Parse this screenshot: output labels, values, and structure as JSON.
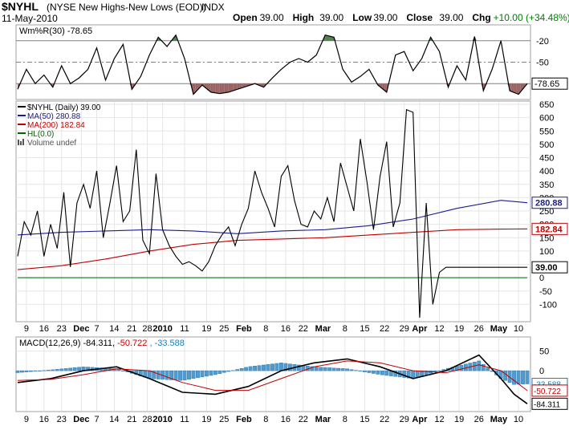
{
  "header": {
    "symbol": "$NYHL",
    "name": "(NYSE New Highs-New Lows (EOD))",
    "exchange": "INDX",
    "date": "11-May-2010",
    "quote": [
      {
        "label": "Open",
        "value": "39.00"
      },
      {
        "label": "High",
        "value": "39.00"
      },
      {
        "label": "Low",
        "value": "39.00"
      },
      {
        "label": "Close",
        "value": "39.00"
      },
      {
        "label": "Chg",
        "value": "+10.00 (+34.48%)"
      }
    ],
    "change_color": "#008000"
  },
  "chart_data": [
    {
      "type": "line",
      "panel": "williams-r",
      "legend": "Wm%R(30) -78.65",
      "ylim": [
        -100,
        0
      ],
      "yticks": [
        "-20",
        "-50"
      ],
      "reference_lines": [
        -20,
        -50,
        -80
      ],
      "last_value_label": "-78.65",
      "colors": {
        "line": "#000000",
        "overbought_fill": "#4f7f4f",
        "oversold_fill": "#9a6464"
      },
      "x_index": [
        0,
        4,
        8,
        12,
        16,
        20,
        24,
        28,
        32,
        36,
        40,
        44,
        48,
        52,
        56,
        60,
        64,
        68,
        72,
        76,
        80,
        84,
        88,
        92,
        96,
        100,
        104,
        108,
        112,
        116,
        120,
        124,
        128,
        132,
        136,
        140,
        144,
        148,
        152,
        156,
        160,
        164,
        168,
        172,
        176,
        180,
        184,
        188,
        192,
        196,
        200,
        204,
        208,
        212,
        216,
        220,
        224,
        228,
        232
      ],
      "values": [
        -88,
        -60,
        -80,
        -68,
        -85,
        -55,
        -80,
        -72,
        -60,
        -30,
        -75,
        -45,
        -25,
        -88,
        -70,
        -40,
        -15,
        -28,
        -12,
        -45,
        -95,
        -82,
        -92,
        -94,
        -92,
        -88,
        -84,
        -80,
        -85,
        -72,
        -60,
        -50,
        -45,
        -50,
        -40,
        -12,
        -15,
        -60,
        -78,
        -70,
        -60,
        -82,
        -92,
        -40,
        -35,
        -62,
        -45,
        -15,
        -35,
        -85,
        -55,
        -75,
        -14,
        -90,
        -60,
        -20,
        -90,
        -95,
        -80
      ]
    },
    {
      "type": "line",
      "panel": "price",
      "legend": [
        {
          "label": "$NYHL (Daily) 39.00",
          "color": "#000000"
        },
        {
          "label": "MA(50) 280.88",
          "color": "#1c1c8c"
        },
        {
          "label": "MA(200) 182.84",
          "color": "#c00000"
        },
        {
          "label": "HL(0.0)",
          "color": "#006400"
        },
        {
          "label": "Volume undef",
          "color": "#555555"
        }
      ],
      "ylim": [
        -150,
        650
      ],
      "yticks": [
        650,
        600,
        550,
        500,
        450,
        400,
        350,
        300,
        250,
        200,
        150,
        100,
        50,
        0,
        -50,
        -100
      ],
      "last_value_labels": [
        {
          "value": 280.88,
          "text": "280.88",
          "color": "#1c1c8c"
        },
        {
          "value": 182.84,
          "text": "182.84",
          "color": "#c00000"
        },
        {
          "value": 39.0,
          "text": "39.00",
          "color": "#000000"
        }
      ],
      "series": [
        {
          "name": "$NYHL",
          "x_index": [
            0,
            3,
            6,
            9,
            12,
            15,
            18,
            21,
            24,
            27,
            30,
            33,
            36,
            39,
            42,
            45,
            48,
            51,
            54,
            57,
            60,
            63,
            66,
            69,
            72,
            75,
            78,
            81,
            84,
            87,
            90,
            93,
            96,
            99,
            102,
            105,
            108,
            111,
            114,
            117,
            120,
            123,
            126,
            129,
            132,
            135,
            138,
            141,
            144,
            147,
            150,
            153,
            156,
            159,
            162,
            165,
            168,
            171,
            174,
            177,
            180,
            183,
            186,
            189,
            192,
            195,
            198,
            201,
            204,
            207,
            210,
            213,
            216,
            219,
            222,
            225,
            228,
            231,
            232
          ],
          "values": [
            80,
            210,
            160,
            250,
            80,
            200,
            110,
            320,
            40,
            280,
            350,
            260,
            400,
            150,
            280,
            420,
            210,
            250,
            480,
            140,
            90,
            390,
            180,
            120,
            80,
            50,
            60,
            45,
            25,
            60,
            120,
            160,
            190,
            120,
            200,
            260,
            400,
            320,
            260,
            190,
            380,
            420,
            290,
            200,
            190,
            250,
            220,
            300,
            210,
            430,
            340,
            250,
            520,
            360,
            180,
            380,
            510,
            190,
            280,
            630,
            620,
            -150,
            280,
            -100,
            20,
            39,
            39,
            39,
            39,
            39,
            39,
            39,
            39,
            39,
            39,
            39,
            39,
            39,
            39
          ]
        },
        {
          "name": "MA(50)",
          "x_index": [
            0,
            20,
            40,
            60,
            80,
            100,
            120,
            140,
            160,
            180,
            200,
            220,
            232
          ],
          "values": [
            160,
            170,
            175,
            180,
            175,
            165,
            175,
            180,
            195,
            220,
            260,
            290,
            281
          ]
        },
        {
          "name": "MA(200)",
          "x_index": [
            0,
            20,
            40,
            60,
            80,
            100,
            120,
            140,
            160,
            180,
            200,
            220,
            232
          ],
          "values": [
            30,
            45,
            70,
            100,
            125,
            140,
            145,
            150,
            160,
            170,
            180,
            182,
            183
          ]
        },
        {
          "name": "HL(0.0)",
          "x_index": [
            0,
            232
          ],
          "values": [
            0,
            0
          ]
        }
      ]
    },
    {
      "type": "line",
      "panel": "macd",
      "legend": [
        {
          "label": "MACD(12,26,9)",
          "color": "#000000"
        },
        {
          "label": "-84.311,",
          "color": "#000000"
        },
        {
          "label": "-50.722",
          "color": "#c00000"
        },
        {
          "label": ", -33.588",
          "color": "#1c7eb8"
        }
      ],
      "ylim": [
        -100,
        80
      ],
      "yticks": [
        "50",
        "0"
      ],
      "last_value_labels": [
        {
          "value": -33.588,
          "text": "-33.588",
          "color": "#1c7eb8"
        },
        {
          "value": -50.722,
          "text": "-50.722",
          "color": "#c00000"
        },
        {
          "value": -84.311,
          "text": "-84.311",
          "color": "#000000"
        }
      ],
      "series": [
        {
          "name": "MACD",
          "x_index": [
            0,
            15,
            30,
            45,
            60,
            75,
            90,
            105,
            120,
            135,
            150,
            165,
            180,
            195,
            210,
            220,
            226,
            232
          ],
          "values": [
            -30,
            -20,
            0,
            10,
            -20,
            -55,
            -60,
            -40,
            0,
            20,
            30,
            10,
            -20,
            0,
            40,
            -20,
            -60,
            -84.311
          ]
        },
        {
          "name": "Signal",
          "x_index": [
            0,
            15,
            30,
            45,
            60,
            75,
            90,
            105,
            120,
            135,
            150,
            165,
            180,
            195,
            210,
            220,
            226,
            232
          ],
          "values": [
            -25,
            -22,
            -10,
            5,
            0,
            -30,
            -50,
            -50,
            -20,
            10,
            25,
            20,
            0,
            -5,
            15,
            0,
            -25,
            -50.722
          ]
        },
        {
          "name": "Histogram",
          "x_index": [
            0,
            15,
            30,
            45,
            60,
            75,
            90,
            105,
            120,
            135,
            150,
            165,
            180,
            195,
            210,
            220,
            226,
            232
          ],
          "values": [
            -5,
            2,
            10,
            5,
            -20,
            -25,
            -10,
            10,
            20,
            10,
            5,
            -10,
            -20,
            5,
            25,
            -20,
            -35,
            -33.588
          ]
        }
      ]
    },
    {
      "type": "axis",
      "panel": "date-axis",
      "total_points": 233,
      "ticks": [
        {
          "label": "9",
          "i": 4
        },
        {
          "label": "16",
          "i": 12
        },
        {
          "label": "23",
          "i": 20
        },
        {
          "label": "Dec",
          "i": 29,
          "bold": true
        },
        {
          "label": "7",
          "i": 36
        },
        {
          "label": "14",
          "i": 44
        },
        {
          "label": "21",
          "i": 52
        },
        {
          "label": "28",
          "i": 59
        },
        {
          "label": "2010",
          "i": 66,
          "bold": true
        },
        {
          "label": "11",
          "i": 76
        },
        {
          "label": "19",
          "i": 86
        },
        {
          "label": "25",
          "i": 94
        },
        {
          "label": "Feb",
          "i": 103,
          "bold": true
        },
        {
          "label": "8",
          "i": 113
        },
        {
          "label": "16",
          "i": 122
        },
        {
          "label": "22",
          "i": 130
        },
        {
          "label": "Mar",
          "i": 139,
          "bold": true
        },
        {
          "label": "8",
          "i": 149
        },
        {
          "label": "15",
          "i": 158
        },
        {
          "label": "22",
          "i": 167
        },
        {
          "label": "29",
          "i": 176
        },
        {
          "label": "Apr",
          "i": 183,
          "bold": true
        },
        {
          "label": "12",
          "i": 192
        },
        {
          "label": "19",
          "i": 201
        },
        {
          "label": "26",
          "i": 210
        },
        {
          "label": "May",
          "i": 219,
          "bold": true
        },
        {
          "label": "10",
          "i": 228
        }
      ]
    }
  ]
}
